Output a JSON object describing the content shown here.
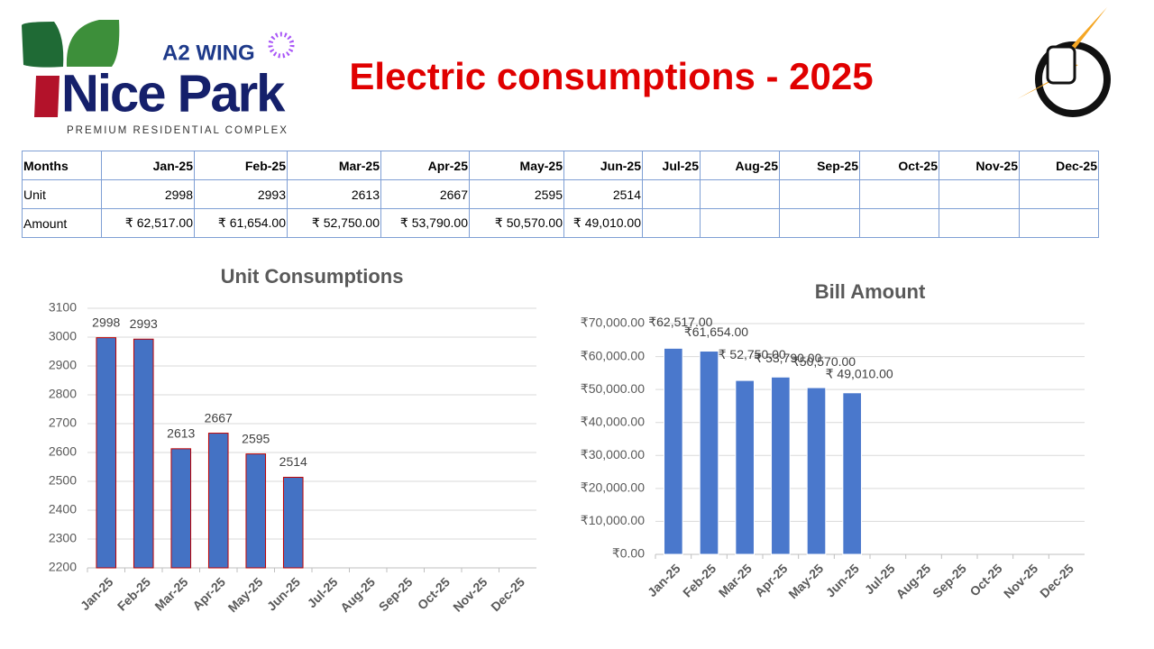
{
  "header": {
    "logo_wing": "A2 WING",
    "logo_name": "Nice Park",
    "logo_tagline": "PREMIUM RESIDENTIAL COMPLEX",
    "title": "Electric consumptions - 2025"
  },
  "table": {
    "header": [
      "Months",
      "Jan-25",
      "Feb-25",
      "Mar-25",
      "Apr-25",
      "May-25",
      "Jun-25",
      "Jul-25",
      "Aug-25",
      "Sep-25",
      "Oct-25",
      "Nov-25",
      "Dec-25"
    ],
    "rows": [
      [
        "Unit",
        2998,
        2993,
        2613,
        2667,
        2595,
        2514
      ],
      [
        "Amount",
        "₹ 62,517.00",
        "₹ 61,654.00",
        "₹ 52,750.00",
        "₹ 53,790.00",
        "₹ 50,570.00",
        "₹ 49,010.00"
      ]
    ]
  },
  "chart_data": [
    {
      "type": "bar",
      "title": "Unit Consumptions",
      "categories": [
        "Jan-25",
        "Feb-25",
        "Mar-25",
        "Apr-25",
        "May-25",
        "Jun-25",
        "Jul-25",
        "Aug-25",
        "Sep-25",
        "Oct-25",
        "Nov-25",
        "Dec-25"
      ],
      "values": [
        2998,
        2993,
        2613,
        2667,
        2595,
        2514,
        null,
        null,
        null,
        null,
        null,
        null
      ],
      "color": "#4472c4",
      "edge_color": "#c00000",
      "ylim": [
        2200,
        3100
      ],
      "yticks": [
        2200,
        2300,
        2400,
        2500,
        2600,
        2700,
        2800,
        2900,
        3000,
        3100
      ],
      "grid": true
    },
    {
      "type": "bar",
      "title": "Bill Amount",
      "categories": [
        "Jan-25",
        "Feb-25",
        "Mar-25",
        "Apr-25",
        "May-25",
        "Jun-25",
        "Jul-25",
        "Aug-25",
        "Sep-25",
        "Oct-25",
        "Nov-25",
        "Dec-25"
      ],
      "values": [
        62517,
        61654,
        52750,
        53790,
        50570,
        49010,
        null,
        null,
        null,
        null,
        null,
        null
      ],
      "value_labels": [
        "₹62,517.00",
        "₹61,654.00",
        "₹ 52,750.00",
        "₹ 53,790.00",
        "₹50,570.00",
        "₹ 49,010.00",
        null,
        null,
        null,
        null,
        null,
        null
      ],
      "color": "#4a78cc",
      "edge_color": "#ffffff",
      "ylim": [
        0,
        70000
      ],
      "yticks": [
        {
          "value": 0,
          "label": "₹0.00"
        },
        {
          "value": 10000,
          "label": "₹10,000.00"
        },
        {
          "value": 20000,
          "label": "₹20,000.00"
        },
        {
          "value": 30000,
          "label": "₹30,000.00"
        },
        {
          "value": 40000,
          "label": "₹40,000.00"
        },
        {
          "value": 50000,
          "label": "₹50,000.00"
        },
        {
          "value": 60000,
          "label": "₹60,000.00"
        },
        {
          "value": 70000,
          "label": "₹70,000.00"
        }
      ],
      "grid": true
    }
  ]
}
